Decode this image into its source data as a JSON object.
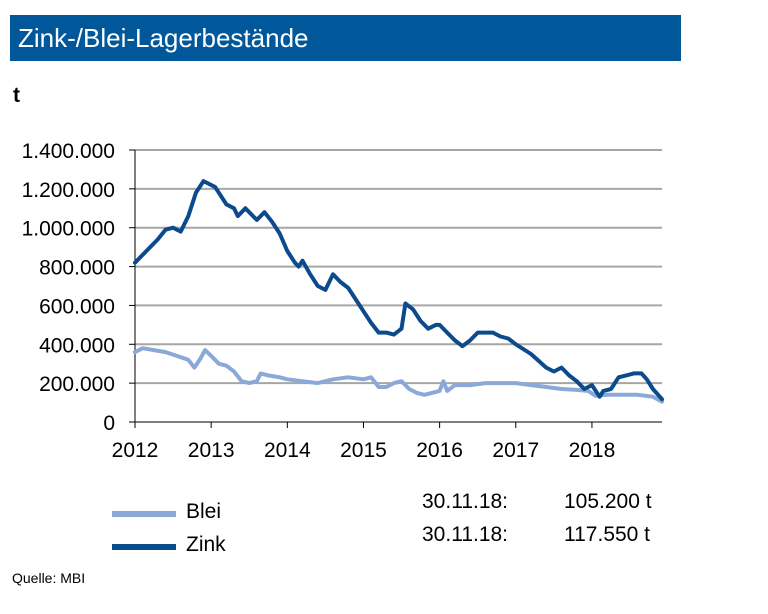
{
  "header": {
    "title": "Zink-/Blei-Lagerbestände"
  },
  "unit_label": "t",
  "source": "Quelle:  MBI",
  "colors": {
    "title_bg": "#00589b",
    "blei": "#8aa8d8",
    "zink": "#0b4a8c",
    "grid": "#a6a6a6"
  },
  "chart_data": {
    "type": "line",
    "title": "Zink-/Blei-Lagerbestände",
    "ylabel": "t",
    "xlim": [
      2012.0,
      2018.92
    ],
    "ylim": [
      0,
      1400000
    ],
    "x_ticks": [
      2012,
      2013,
      2014,
      2015,
      2016,
      2017,
      2018
    ],
    "x_tick_labels": [
      "2012",
      "2013",
      "2014",
      "2015",
      "2016",
      "2017",
      "2018"
    ],
    "y_ticks": [
      0,
      200000,
      400000,
      600000,
      800000,
      1000000,
      1200000,
      1400000
    ],
    "y_tick_labels": [
      "0",
      "200.000",
      "400.000",
      "600.000",
      "800.000",
      "1.000.000",
      "1.200.000",
      "1.400.000"
    ],
    "grid": true,
    "legend_position": "bottom",
    "series": [
      {
        "name": "Blei",
        "color": "#8aa8d8",
        "x": [
          2012.0,
          2012.1,
          2012.25,
          2012.4,
          2012.55,
          2012.7,
          2012.78,
          2012.85,
          2012.92,
          2013.0,
          2013.1,
          2013.2,
          2013.3,
          2013.4,
          2013.5,
          2013.6,
          2013.65,
          2013.75,
          2013.9,
          2014.0,
          2014.2,
          2014.4,
          2014.6,
          2014.8,
          2015.0,
          2015.1,
          2015.2,
          2015.3,
          2015.4,
          2015.5,
          2015.6,
          2015.7,
          2015.8,
          2015.9,
          2016.0,
          2016.05,
          2016.1,
          2016.2,
          2016.4,
          2016.6,
          2016.8,
          2017.0,
          2017.2,
          2017.4,
          2017.6,
          2017.8,
          2017.95,
          2018.05,
          2018.2,
          2018.4,
          2018.6,
          2018.8,
          2018.92
        ],
        "values": [
          360000,
          380000,
          370000,
          360000,
          340000,
          320000,
          280000,
          320000,
          370000,
          340000,
          300000,
          290000,
          260000,
          210000,
          200000,
          210000,
          250000,
          240000,
          230000,
          220000,
          210000,
          200000,
          220000,
          230000,
          220000,
          230000,
          180000,
          180000,
          200000,
          210000,
          170000,
          150000,
          140000,
          150000,
          160000,
          210000,
          160000,
          190000,
          190000,
          200000,
          200000,
          200000,
          190000,
          180000,
          170000,
          165000,
          160000,
          135000,
          140000,
          140000,
          140000,
          130000,
          105200
        ]
      },
      {
        "name": "Zink",
        "color": "#0b4a8c",
        "x": [
          2012.0,
          2012.1,
          2012.2,
          2012.3,
          2012.4,
          2012.5,
          2012.6,
          2012.7,
          2012.8,
          2012.9,
          2013.0,
          2013.05,
          2013.1,
          2013.2,
          2013.3,
          2013.35,
          2013.45,
          2013.5,
          2013.6,
          2013.7,
          2013.8,
          2013.9,
          2014.0,
          2014.1,
          2014.15,
          2014.2,
          2014.3,
          2014.4,
          2014.5,
          2014.6,
          2014.7,
          2014.8,
          2014.9,
          2015.0,
          2015.1,
          2015.2,
          2015.3,
          2015.4,
          2015.5,
          2015.55,
          2015.65,
          2015.75,
          2015.85,
          2015.95,
          2016.0,
          2016.1,
          2016.2,
          2016.3,
          2016.4,
          2016.5,
          2016.6,
          2016.7,
          2016.8,
          2016.9,
          2017.0,
          2017.2,
          2017.4,
          2017.5,
          2017.6,
          2017.7,
          2017.8,
          2017.9,
          2018.0,
          2018.1,
          2018.15,
          2018.25,
          2018.35,
          2018.45,
          2018.55,
          2018.65,
          2018.72,
          2018.8,
          2018.92
        ],
        "values": [
          820000,
          860000,
          900000,
          940000,
          990000,
          1000000,
          980000,
          1060000,
          1180000,
          1240000,
          1220000,
          1210000,
          1180000,
          1120000,
          1100000,
          1060000,
          1100000,
          1080000,
          1040000,
          1080000,
          1030000,
          970000,
          880000,
          820000,
          800000,
          830000,
          760000,
          700000,
          680000,
          760000,
          720000,
          690000,
          630000,
          570000,
          510000,
          460000,
          460000,
          450000,
          480000,
          610000,
          580000,
          520000,
          480000,
          500000,
          500000,
          460000,
          420000,
          390000,
          420000,
          460000,
          460000,
          460000,
          440000,
          430000,
          400000,
          350000,
          280000,
          260000,
          280000,
          240000,
          210000,
          170000,
          190000,
          130000,
          160000,
          170000,
          230000,
          240000,
          250000,
          250000,
          220000,
          170000,
          117550
        ]
      }
    ],
    "legend": [
      {
        "name": "Blei",
        "date": "30.11.18:",
        "value": "105.200 t"
      },
      {
        "name": "Zink",
        "date": "30.11.18:",
        "value": "117.550 t"
      }
    ]
  }
}
